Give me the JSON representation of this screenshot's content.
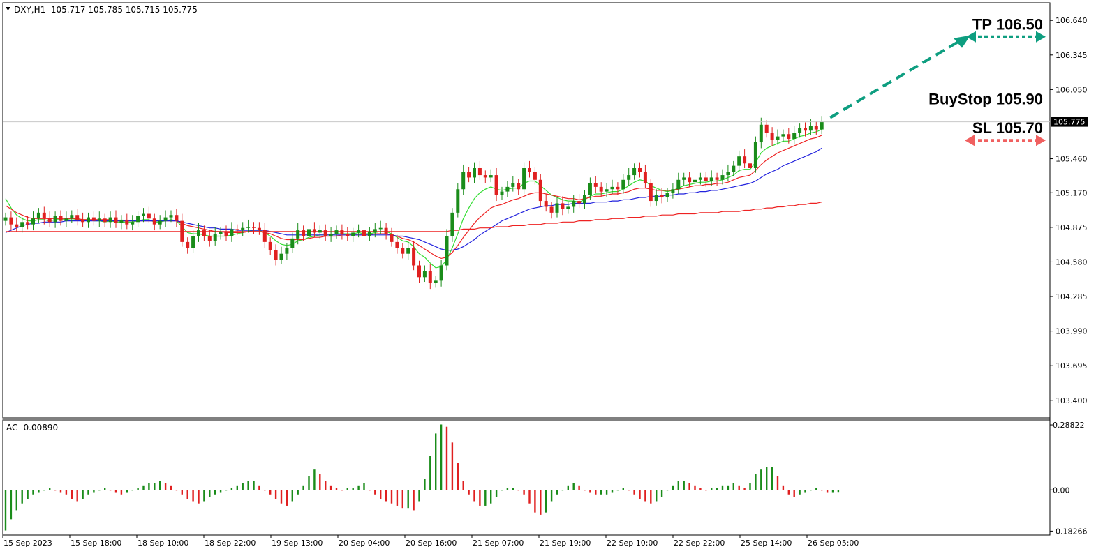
{
  "window": {
    "symbol_info": "DXY,H1  105.717 105.785 105.715 105.775",
    "dropdown_icon": "triangle-down-icon"
  },
  "chart_data": [
    {
      "type": "candlestick",
      "title": "DXY,H1  105.717 105.785 105.715 105.775",
      "ylim": [
        103.25,
        106.79
      ],
      "y_ticks": [
        "106.640",
        "106.345",
        "106.050",
        "105.460",
        "105.170",
        "104.875",
        "104.580",
        "104.285",
        "103.990",
        "103.695",
        "103.400"
      ],
      "current_price_label": "105.775",
      "current_price": 105.775,
      "x_tick_labels": [
        "15 Sep 2023",
        "15 Sep 18:00",
        "18 Sep 10:00",
        "18 Sep 22:00",
        "19 Sep 13:00",
        "20 Sep 04:00",
        "20 Sep 16:00",
        "21 Sep 07:00",
        "21 Sep 19:00",
        "22 Sep 10:00",
        "22 Sep 22:00",
        "25 Sep 14:00",
        "26 Sep 05:00"
      ],
      "bull_color": "#1a8c1a",
      "bear_color": "#e02020",
      "closes": [
        104.96,
        104.9,
        104.88,
        104.92,
        104.9,
        104.95,
        105.0,
        104.95,
        104.92,
        104.97,
        104.93,
        104.95,
        104.98,
        104.94,
        104.92,
        104.96,
        104.93,
        104.95,
        104.92,
        104.96,
        104.91,
        104.94,
        104.9,
        104.92,
        104.97,
        104.99,
        104.95,
        104.9,
        104.93,
        104.96,
        104.98,
        104.93,
        104.75,
        104.7,
        104.8,
        104.85,
        104.8,
        104.76,
        104.82,
        104.84,
        104.8,
        104.86,
        104.85,
        104.87,
        104.88,
        104.87,
        104.85,
        104.75,
        104.68,
        104.6,
        104.65,
        104.7,
        104.78,
        104.85,
        104.8,
        104.86,
        104.83,
        104.85,
        104.8,
        104.82,
        104.85,
        104.82,
        104.8,
        104.83,
        104.85,
        104.8,
        104.84,
        104.86,
        104.87,
        104.82,
        104.75,
        104.7,
        104.65,
        104.7,
        104.55,
        104.45,
        104.5,
        104.4,
        104.42,
        104.55,
        104.8,
        105.0,
        105.2,
        105.35,
        105.3,
        105.38,
        105.32,
        105.3,
        105.32,
        105.15,
        105.18,
        105.22,
        105.25,
        105.2,
        105.38,
        105.35,
        105.28,
        105.1,
        105.05,
        105.0,
        105.08,
        105.03,
        105.05,
        105.1,
        105.08,
        105.15,
        105.25,
        105.22,
        105.18,
        105.2,
        105.22,
        105.2,
        105.28,
        105.32,
        105.38,
        105.35,
        105.25,
        105.1,
        105.15,
        105.13,
        105.17,
        105.2,
        105.28,
        105.3,
        105.26,
        105.28,
        105.3,
        105.27,
        105.3,
        105.28,
        105.32,
        105.35,
        105.4,
        105.48,
        105.42,
        105.38,
        105.6,
        105.75,
        105.68,
        105.62,
        105.65,
        105.67,
        105.63,
        105.68,
        105.72,
        105.7,
        105.74,
        105.71,
        105.775
      ],
      "indicator_lines": [
        {
          "name": "MA-fast",
          "color": "#33dd33",
          "values": [
            105.12,
            105.04,
            104.98,
            104.95,
            104.93,
            104.93,
            104.94,
            104.94,
            104.93,
            104.94,
            104.94,
            104.94,
            104.95,
            104.94,
            104.94,
            104.94,
            104.93,
            104.93,
            104.92,
            104.93,
            104.92,
            104.92,
            104.92,
            104.92,
            104.93,
            104.94,
            104.94,
            104.92,
            104.92,
            104.93,
            104.94,
            104.93,
            104.88,
            104.83,
            104.82,
            104.82,
            104.81,
            104.8,
            104.8,
            104.8,
            104.8,
            104.81,
            104.82,
            104.83,
            104.84,
            104.85,
            104.85,
            104.83,
            104.8,
            104.76,
            104.73,
            104.72,
            104.73,
            104.76,
            104.77,
            104.79,
            104.8,
            104.81,
            104.81,
            104.81,
            104.82,
            104.82,
            104.82,
            104.82,
            104.83,
            104.82,
            104.82,
            104.83,
            104.84,
            104.84,
            104.82,
            104.79,
            104.76,
            104.75,
            104.71,
            104.65,
            104.62,
            104.57,
            104.53,
            104.54,
            104.6,
            104.7,
            104.82,
            104.95,
            105.04,
            105.12,
            105.17,
            105.2,
            105.22,
            105.2,
            105.19,
            105.2,
            105.21,
            105.21,
            105.25,
            105.27,
            105.27,
            105.23,
            105.19,
            105.15,
            105.13,
            105.11,
            105.1,
            105.1,
            105.09,
            105.11,
            105.14,
            105.16,
            105.16,
            105.17,
            105.18,
            105.18,
            105.2,
            105.23,
            105.26,
            105.28,
            105.27,
            105.23,
            105.21,
            105.19,
            105.18,
            105.19,
            105.21,
            105.23,
            105.24,
            105.25,
            105.26,
            105.26,
            105.27,
            105.27,
            105.28,
            105.3,
            105.32,
            105.36,
            105.37,
            105.37,
            105.43,
            105.51,
            105.55,
            105.57,
            105.59,
            105.61,
            105.61,
            105.63,
            105.65,
            105.66,
            105.68,
            105.69,
            105.71
          ]
        },
        {
          "name": "MA-mid",
          "color": "#ee2222",
          "values": [
            105.06,
            105.03,
            105.0,
            104.98,
            104.96,
            104.95,
            104.95,
            104.95,
            104.95,
            104.95,
            104.95,
            104.95,
            104.95,
            104.95,
            104.94,
            104.94,
            104.94,
            104.94,
            104.94,
            104.94,
            104.93,
            104.93,
            104.93,
            104.93,
            104.93,
            104.93,
            104.93,
            104.93,
            104.93,
            104.93,
            104.93,
            104.93,
            104.91,
            104.89,
            104.88,
            104.87,
            104.86,
            104.85,
            104.84,
            104.84,
            104.83,
            104.83,
            104.83,
            104.83,
            104.84,
            104.84,
            104.84,
            104.83,
            104.82,
            104.8,
            104.78,
            104.77,
            104.77,
            104.77,
            104.77,
            104.78,
            104.79,
            104.79,
            104.8,
            104.8,
            104.8,
            104.81,
            104.81,
            104.81,
            104.81,
            104.81,
            104.81,
            104.82,
            104.82,
            104.82,
            104.81,
            104.8,
            104.78,
            104.77,
            104.75,
            104.72,
            104.69,
            104.66,
            104.63,
            104.61,
            104.62,
            104.66,
            104.72,
            104.79,
            104.85,
            104.91,
            104.96,
            105.0,
            105.04,
            105.06,
            105.07,
            105.09,
            105.11,
            105.12,
            105.14,
            105.16,
            105.17,
            105.17,
            105.16,
            105.15,
            105.14,
            105.13,
            105.12,
            105.12,
            105.11,
            105.12,
            105.13,
            105.14,
            105.14,
            105.15,
            105.16,
            105.16,
            105.17,
            105.18,
            105.2,
            105.21,
            105.21,
            105.2,
            105.19,
            105.19,
            105.19,
            105.19,
            105.2,
            105.21,
            105.22,
            105.23,
            105.23,
            105.24,
            105.24,
            105.25,
            105.25,
            105.26,
            105.28,
            105.3,
            105.31,
            105.32,
            105.36,
            105.41,
            105.45,
            105.48,
            105.51,
            105.53,
            105.55,
            105.57,
            105.59,
            105.61,
            105.63,
            105.64,
            105.66
          ]
        },
        {
          "name": "MA-slow",
          "color": "#2222dd",
          "values": [
            104.83,
            104.85,
            104.87,
            104.89,
            104.9,
            104.91,
            104.91,
            104.92,
            104.92,
            104.92,
            104.92,
            104.93,
            104.93,
            104.93,
            104.93,
            104.93,
            104.93,
            104.93,
            104.93,
            104.93,
            104.93,
            104.93,
            104.93,
            104.93,
            104.93,
            104.93,
            104.93,
            104.93,
            104.93,
            104.93,
            104.93,
            104.93,
            104.92,
            104.91,
            104.9,
            104.89,
            104.88,
            104.87,
            104.87,
            104.86,
            104.86,
            104.86,
            104.85,
            104.85,
            104.85,
            104.85,
            104.85,
            104.85,
            104.84,
            104.83,
            104.82,
            104.81,
            104.81,
            104.81,
            104.81,
            104.81,
            104.81,
            104.81,
            104.81,
            104.81,
            104.81,
            104.81,
            104.81,
            104.81,
            104.81,
            104.81,
            104.81,
            104.81,
            104.81,
            104.81,
            104.81,
            104.8,
            104.8,
            104.79,
            104.78,
            104.77,
            104.75,
            104.73,
            104.71,
            104.69,
            104.68,
            104.68,
            104.69,
            104.71,
            104.74,
            104.77,
            104.81,
            104.84,
            104.87,
            104.9,
            104.93,
            104.95,
            104.97,
            104.99,
            105.01,
            105.03,
            105.04,
            105.05,
            105.06,
            105.06,
            105.07,
            105.07,
            105.07,
            105.08,
            105.08,
            105.08,
            105.08,
            105.09,
            105.09,
            105.09,
            105.1,
            105.1,
            105.11,
            105.11,
            105.12,
            105.13,
            105.13,
            105.14,
            105.14,
            105.14,
            105.15,
            105.15,
            105.16,
            105.16,
            105.17,
            105.17,
            105.18,
            105.18,
            105.19,
            105.19,
            105.2,
            105.21,
            105.22,
            105.23,
            105.24,
            105.25,
            105.27,
            105.3,
            105.33,
            105.35,
            105.37,
            105.4,
            105.42,
            105.44,
            105.46,
            105.48,
            105.5,
            105.52,
            105.55
          ]
        },
        {
          "name": "MA-long",
          "color": "#ee2222",
          "values": [
            104.84,
            104.84,
            104.84,
            104.84,
            104.84,
            104.84,
            104.84,
            104.84,
            104.84,
            104.84,
            104.84,
            104.84,
            104.84,
            104.84,
            104.84,
            104.84,
            104.84,
            104.84,
            104.84,
            104.84,
            104.84,
            104.84,
            104.84,
            104.84,
            104.84,
            104.84,
            104.84,
            104.84,
            104.84,
            104.84,
            104.84,
            104.84,
            104.84,
            104.84,
            104.84,
            104.84,
            104.84,
            104.84,
            104.84,
            104.84,
            104.84,
            104.84,
            104.84,
            104.84,
            104.84,
            104.84,
            104.84,
            104.84,
            104.84,
            104.84,
            104.84,
            104.84,
            104.84,
            104.84,
            104.84,
            104.84,
            104.84,
            104.84,
            104.84,
            104.84,
            104.84,
            104.84,
            104.84,
            104.84,
            104.84,
            104.84,
            104.84,
            104.84,
            104.84,
            104.84,
            104.84,
            104.84,
            104.84,
            104.84,
            104.84,
            104.84,
            104.84,
            104.84,
            104.84,
            104.84,
            104.84,
            104.85,
            104.85,
            104.86,
            104.86,
            104.86,
            104.87,
            104.87,
            104.87,
            104.88,
            104.88,
            104.88,
            104.89,
            104.89,
            104.89,
            104.9,
            104.9,
            104.9,
            104.91,
            104.91,
            104.91,
            104.92,
            104.92,
            104.92,
            104.93,
            104.93,
            104.93,
            104.94,
            104.94,
            104.94,
            104.95,
            104.95,
            104.95,
            104.96,
            104.96,
            104.96,
            104.97,
            104.97,
            104.97,
            104.98,
            104.98,
            104.98,
            104.99,
            104.99,
            104.99,
            104.99,
            105.0,
            105.0,
            105.0,
            105.0,
            105.01,
            105.01,
            105.01,
            105.01,
            105.02,
            105.02,
            105.03,
            105.03,
            105.04,
            105.04,
            105.05,
            105.05,
            105.06,
            105.06,
            105.07,
            105.07,
            105.08,
            105.08,
            105.09
          ]
        }
      ],
      "annotations": {
        "tp_label": "TP 106.50",
        "tp_price": 106.5,
        "buystop_label": "BuyStop 105.90",
        "buystop_price": 105.9,
        "sl_label": "SL 105.70",
        "sl_price": 105.7,
        "tp_color": "#0e9e80",
        "sl_color": "#f06060"
      }
    },
    {
      "type": "bar",
      "title": "AC -0.00890",
      "ylim": [
        -0.2,
        0.31
      ],
      "y_ticks": [
        "0.28822",
        "0.00",
        "-0.18266"
      ],
      "bull_color": "#1a8c1a",
      "bear_color": "#e02020",
      "values": [
        -0.18,
        -0.13,
        -0.09,
        -0.06,
        -0.04,
        -0.02,
        -0.01,
        0.0,
        0.01,
        0.0,
        -0.01,
        -0.02,
        -0.04,
        -0.05,
        -0.04,
        -0.02,
        -0.01,
        0.0,
        0.01,
        0.0,
        -0.01,
        -0.02,
        -0.01,
        0.0,
        0.01,
        0.02,
        0.03,
        0.03,
        0.04,
        0.03,
        0.02,
        0.0,
        -0.02,
        -0.04,
        -0.05,
        -0.06,
        -0.05,
        -0.03,
        -0.02,
        -0.01,
        0.0,
        0.01,
        0.02,
        0.03,
        0.04,
        0.04,
        0.02,
        0.0,
        -0.02,
        -0.04,
        -0.06,
        -0.07,
        -0.05,
        -0.02,
        0.02,
        0.06,
        0.09,
        0.07,
        0.04,
        0.02,
        0.01,
        0.0,
        0.01,
        0.01,
        0.02,
        0.03,
        0.0,
        -0.02,
        -0.04,
        -0.05,
        -0.06,
        -0.07,
        -0.08,
        -0.08,
        -0.09,
        -0.05,
        0.05,
        0.15,
        0.25,
        0.29,
        0.28,
        0.21,
        0.12,
        0.04,
        -0.02,
        -0.05,
        -0.07,
        -0.07,
        -0.06,
        -0.03,
        0.0,
        0.01,
        0.01,
        0.0,
        -0.02,
        -0.06,
        -0.1,
        -0.11,
        -0.1,
        -0.05,
        -0.02,
        0.0,
        0.02,
        0.03,
        0.02,
        0.0,
        -0.01,
        -0.02,
        -0.02,
        -0.02,
        -0.01,
        0.0,
        0.01,
        0.0,
        -0.02,
        -0.04,
        -0.05,
        -0.06,
        -0.05,
        -0.03,
        0.0,
        0.02,
        0.04,
        0.04,
        0.03,
        0.02,
        0.01,
        0.0,
        0.01,
        0.01,
        0.02,
        0.02,
        0.03,
        0.02,
        0.01,
        0.03,
        0.07,
        0.09,
        0.1,
        0.1,
        0.06,
        0.02,
        -0.02,
        -0.03,
        -0.02,
        -0.01,
        0.0,
        0.01,
        0.0,
        -0.01,
        -0.01,
        -0.009
      ]
    }
  ]
}
